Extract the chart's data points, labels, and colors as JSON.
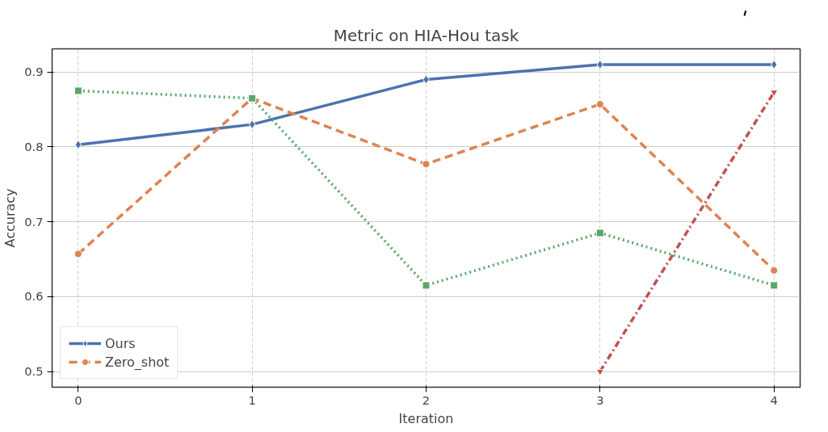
{
  "chart_data": {
    "type": "line",
    "title": "Metric on HIA-Hou task",
    "xlabel": "Iteration",
    "ylabel": "Accuracy",
    "x": [
      0,
      1,
      2,
      3,
      4
    ],
    "series": [
      {
        "name": "Ours",
        "color": "#4c72b0",
        "marker": "diamond",
        "line_style": "solid",
        "values": [
          0.803,
          0.83,
          0.89,
          0.91,
          0.91
        ]
      },
      {
        "name": "Zero_shot",
        "color": "#dd8452",
        "marker": "circle",
        "line_style": "dashed",
        "values": [
          0.657,
          0.865,
          0.777,
          0.857,
          0.635
        ]
      },
      {
        "color": "#55a868",
        "marker": "square",
        "line_style": "dotted",
        "values": [
          0.875,
          0.865,
          0.615,
          0.685,
          0.615
        ]
      },
      {
        "color": "#c44e52",
        "marker": "triangle",
        "line_style": "dashdot",
        "values": [
          null,
          null,
          null,
          0.5,
          0.873
        ]
      }
    ],
    "xlim": [
      -0.15,
      4.15
    ],
    "ylim": [
      0.479,
      0.931
    ],
    "xticks": [
      0,
      1,
      2,
      3,
      4
    ],
    "yticks": [
      0.5,
      0.6,
      0.7,
      0.8,
      0.9
    ],
    "grid": true,
    "legend": "bottom left"
  }
}
